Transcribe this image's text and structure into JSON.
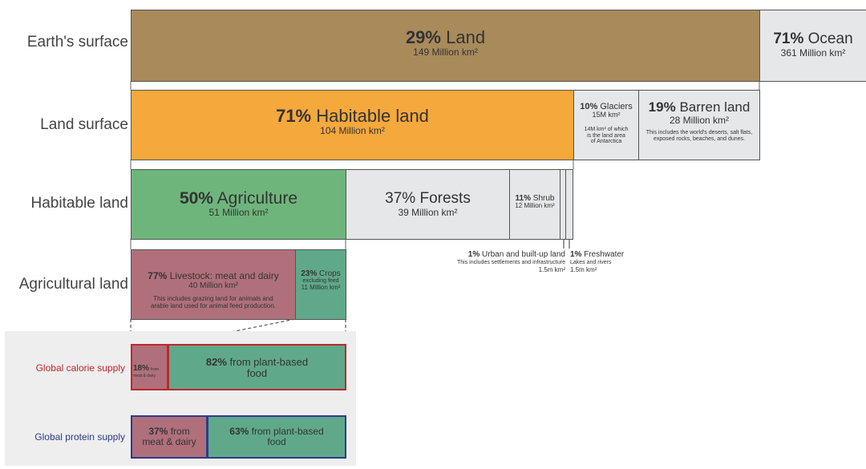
{
  "row_labels": {
    "earth": "Earth's surface",
    "land": "Land surface",
    "habitable": "Habitable land",
    "agricultural": "Agricultural land",
    "calorie": "Global calorie supply",
    "protein": "Global protein supply"
  },
  "earth": {
    "land": {
      "pct": "29%",
      "label": "Land",
      "value": "149 Million km²"
    },
    "ocean": {
      "pct": "71%",
      "label": "Ocean",
      "value": "361 Million km²"
    }
  },
  "landsurf": {
    "habitable": {
      "pct": "71%",
      "label": "Habitable land",
      "value": "104 Million km²"
    },
    "glaciers": {
      "pct": "10%",
      "label": "Glaciers",
      "value": "15M km²",
      "note1": "14M km² of which",
      "note2": "is the land area",
      "note3": "of Antarctica"
    },
    "barren": {
      "pct": "19%",
      "label": "Barren land",
      "value": "28 Million km²",
      "note1": "This includes the world's deserts, salt flats,",
      "note2": "exposed rocks, beaches, and dunes."
    }
  },
  "habit": {
    "agriculture": {
      "pct": "50%",
      "label": "Agriculture",
      "value": "51 Million km²"
    },
    "forests": {
      "pct": "37%",
      "label": "Forests",
      "value": "39 Million km²"
    },
    "shrub": {
      "pct": "11%",
      "label": "Shrub",
      "value": "12 Million km²"
    },
    "urban": {
      "pct": "1%",
      "label": "Urban and built-up land",
      "note": "This includes settlements and infrastructure",
      "value": "1.5m km²"
    },
    "fresh": {
      "pct": "1%",
      "label": "Freshwater",
      "note": "Lakes and rivers",
      "value": "1.5m km²"
    }
  },
  "agri": {
    "livestock": {
      "pct": "77%",
      "label": "Livestock: meat and dairy",
      "value": "40 Million km²",
      "note1": "This includes grazing land for animals and",
      "note2": "arable land used for animal feed production."
    },
    "crops": {
      "pct": "23%",
      "label": "Crops",
      "note": "excluding feed",
      "value": "11 Million km²"
    }
  },
  "calorie": {
    "meat": {
      "pct": "18%",
      "note1": "from",
      "note2": "meat & dairy"
    },
    "plant": {
      "pct": "82%",
      "label1": "from plant-based",
      "label2": "food"
    }
  },
  "protein": {
    "meat": {
      "pct": "37%",
      "label1": "from",
      "label2": "meat & dairy"
    },
    "plant": {
      "pct": "63%",
      "label1": "from plant-based",
      "label2": "food"
    }
  },
  "colors": {
    "land": "#a88a5b",
    "ocean": "#e6e7e9",
    "habitable": "#f5a83c",
    "grey": "#e6e7e9",
    "agriculture": "#6eb57c",
    "livestock": "#b0707b",
    "crops": "#5fa98a",
    "calorie_border": "#c0272d",
    "protein_border": "#2e3a8c",
    "panel": "#eeeeee"
  },
  "chart_data": {
    "type": "bar",
    "rows": [
      {
        "name": "Earth's surface",
        "segments": [
          {
            "label": "Land",
            "pct": 29,
            "value_million_km2": 149
          },
          {
            "label": "Ocean",
            "pct": 71,
            "value_million_km2": 361
          }
        ]
      },
      {
        "name": "Land surface",
        "segments": [
          {
            "label": "Habitable land",
            "pct": 71,
            "value_million_km2": 104
          },
          {
            "label": "Glaciers",
            "pct": 10,
            "value_million_km2": 15
          },
          {
            "label": "Barren land",
            "pct": 19,
            "value_million_km2": 28
          }
        ]
      },
      {
        "name": "Habitable land",
        "segments": [
          {
            "label": "Agriculture",
            "pct": 50,
            "value_million_km2": 51
          },
          {
            "label": "Forests",
            "pct": 37,
            "value_million_km2": 39
          },
          {
            "label": "Shrub",
            "pct": 11,
            "value_million_km2": 12
          },
          {
            "label": "Urban and built-up land",
            "pct": 1,
            "value_million_km2": 1.5
          },
          {
            "label": "Freshwater",
            "pct": 1,
            "value_million_km2": 1.5
          }
        ]
      },
      {
        "name": "Agricultural land",
        "segments": [
          {
            "label": "Livestock: meat and dairy",
            "pct": 77,
            "value_million_km2": 40
          },
          {
            "label": "Crops",
            "pct": 23,
            "value_million_km2": 11
          }
        ]
      },
      {
        "name": "Global calorie supply",
        "segments": [
          {
            "label": "from meat & dairy",
            "pct": 18
          },
          {
            "label": "from plant-based food",
            "pct": 82
          }
        ]
      },
      {
        "name": "Global protein supply",
        "segments": [
          {
            "label": "from meat & dairy",
            "pct": 37
          },
          {
            "label": "from plant-based food",
            "pct": 63
          }
        ]
      }
    ]
  }
}
